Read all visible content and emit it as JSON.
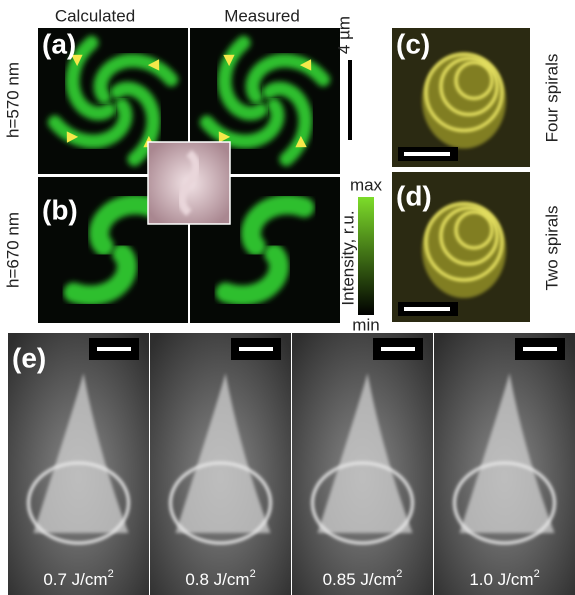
{
  "columns": [
    "Calculated",
    "Measured"
  ],
  "scale_label": "4 µm",
  "panels": {
    "a": "(a)",
    "b": "(b)",
    "c": "(c)",
    "d": "(d)",
    "e": "(e)"
  },
  "rows": [
    "h=570 nm",
    "h=670 nm"
  ],
  "colorbar": {
    "max": "max",
    "min": "min",
    "label": "Intensity, r.u."
  },
  "side_labels": [
    "Four spirals",
    "Two spirals"
  ],
  "fluences": [
    {
      "text": "0.7 J/cm",
      "sup": "2"
    },
    {
      "text": "0.8 J/cm",
      "sup": "2"
    },
    {
      "text": "0.85 J/cm",
      "sup": "2"
    },
    {
      "text": "1.0 J/cm",
      "sup": "2"
    }
  ]
}
